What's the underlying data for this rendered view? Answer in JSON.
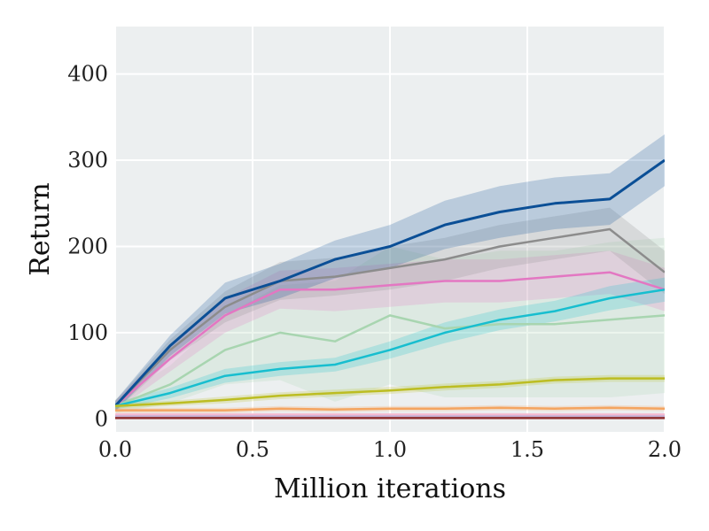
{
  "chart_data": {
    "type": "line",
    "xlabel": "Million iterations",
    "ylabel": "Return",
    "xlim": [
      0,
      2.0
    ],
    "ylim": [
      -15,
      455
    ],
    "xticks": [
      0.0,
      0.5,
      1.0,
      1.5,
      2.0
    ],
    "xtick_labels": [
      "0.0",
      "0.5",
      "1.0",
      "1.5",
      "2.0"
    ],
    "yticks": [
      0,
      100,
      200,
      300,
      400
    ],
    "ytick_labels": [
      "0",
      "100",
      "200",
      "300",
      "400"
    ],
    "grid": true,
    "legend": "none",
    "background": "#eceff0",
    "series": [
      {
        "color": "#a8d5b0",
        "x": [
          0.0,
          0.2,
          0.4,
          0.6,
          0.8,
          1.0,
          1.2,
          1.4,
          1.6,
          1.8,
          2.0
        ],
        "values": [
          15,
          40,
          80,
          100,
          90,
          120,
          105,
          110,
          110,
          115,
          120
        ],
        "band": [
          8,
          22,
          40,
          55,
          70,
          80,
          80,
          85,
          85,
          90,
          90
        ]
      },
      {
        "color": "#e377c2",
        "x": [
          0.0,
          0.2,
          0.4,
          0.6,
          0.8,
          1.0,
          1.2,
          1.4,
          1.6,
          1.8,
          2.0
        ],
        "values": [
          15,
          70,
          120,
          150,
          150,
          155,
          160,
          160,
          165,
          170,
          150
        ],
        "band": [
          6,
          15,
          20,
          22,
          25,
          25,
          25,
          25,
          25,
          25,
          25
        ]
      },
      {
        "color": "#8c8c8c",
        "x": [
          0.0,
          0.2,
          0.4,
          0.6,
          0.8,
          1.0,
          1.2,
          1.4,
          1.6,
          1.8,
          2.0
        ],
        "values": [
          15,
          80,
          130,
          160,
          165,
          175,
          185,
          200,
          210,
          220,
          170
        ],
        "band": [
          6,
          12,
          18,
          22,
          22,
          25,
          25,
          25,
          25,
          25,
          25
        ]
      },
      {
        "color": "#0b4f96",
        "x": [
          0.0,
          0.2,
          0.4,
          0.6,
          0.8,
          1.0,
          1.2,
          1.4,
          1.6,
          1.8,
          2.0
        ],
        "values": [
          15,
          85,
          140,
          160,
          185,
          200,
          225,
          240,
          250,
          255,
          300
        ],
        "band": [
          6,
          12,
          18,
          20,
          22,
          25,
          28,
          30,
          30,
          30,
          30
        ]
      },
      {
        "color": "#17becf",
        "x": [
          0.0,
          0.2,
          0.4,
          0.6,
          0.8,
          1.0,
          1.2,
          1.4,
          1.6,
          1.8,
          2.0
        ],
        "values": [
          15,
          30,
          50,
          58,
          63,
          80,
          100,
          115,
          125,
          140,
          150
        ],
        "band": [
          4,
          6,
          8,
          8,
          8,
          10,
          12,
          12,
          12,
          14,
          14
        ]
      },
      {
        "color": "#bcbd22",
        "x": [
          0.0,
          0.2,
          0.4,
          0.6,
          0.8,
          1.0,
          1.2,
          1.4,
          1.6,
          1.8,
          2.0
        ],
        "values": [
          15,
          18,
          22,
          27,
          30,
          33,
          37,
          40,
          45,
          47,
          47
        ],
        "band": [
          3,
          3,
          4,
          4,
          4,
          4,
          4,
          4,
          4,
          4,
          4
        ]
      },
      {
        "color": "#f4a460",
        "x": [
          0.0,
          0.2,
          0.4,
          0.6,
          0.8,
          1.0,
          1.2,
          1.4,
          1.6,
          1.8,
          2.0
        ],
        "values": [
          10,
          10,
          10,
          12,
          11,
          12,
          12,
          13,
          12,
          13,
          12
        ],
        "band": [
          3,
          3,
          3,
          3,
          3,
          3,
          3,
          3,
          3,
          3,
          3
        ]
      },
      {
        "color": "#f5b8d0",
        "x": [
          0.0,
          0.2,
          0.4,
          0.6,
          0.8,
          1.0,
          1.2,
          1.4,
          1.6,
          1.8,
          2.0
        ],
        "values": [
          5,
          5,
          5,
          5,
          5,
          5,
          5,
          5,
          5,
          5,
          5
        ],
        "band": [
          2,
          2,
          2,
          2,
          2,
          2,
          2,
          2,
          2,
          2,
          2
        ]
      },
      {
        "color": "#c5b0d5",
        "x": [
          0.0,
          0.2,
          0.4,
          0.6,
          0.8,
          1.0,
          1.2,
          1.4,
          1.6,
          1.8,
          2.0
        ],
        "values": [
          3,
          3,
          3,
          3,
          3,
          3,
          3,
          3,
          3,
          3,
          3
        ],
        "band": [
          1,
          1,
          1,
          1,
          1,
          1,
          1,
          1,
          1,
          1,
          1
        ]
      },
      {
        "color": "#8c2d2d",
        "x": [
          0.0,
          0.2,
          0.4,
          0.6,
          0.8,
          1.0,
          1.2,
          1.4,
          1.6,
          1.8,
          2.0
        ],
        "values": [
          1,
          1,
          1,
          1,
          1,
          1,
          1,
          1,
          1,
          1,
          1
        ],
        "band": [
          1,
          1,
          1,
          1,
          1,
          1,
          1,
          1,
          1,
          1,
          1
        ]
      }
    ]
  }
}
